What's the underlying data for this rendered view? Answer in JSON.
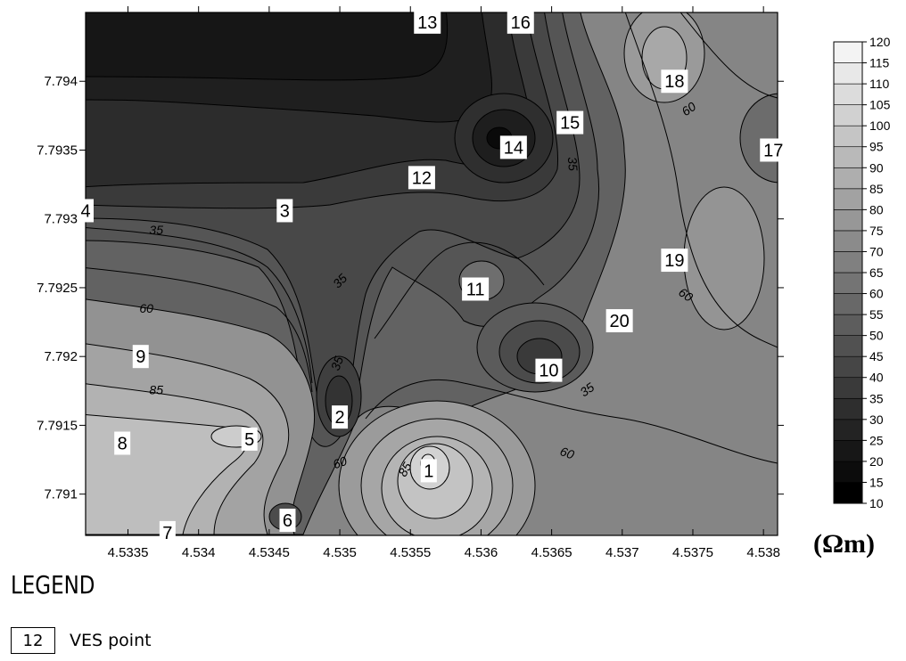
{
  "map": {
    "x_ticks": [
      "4.5335",
      "4.534",
      "4.5345",
      "4.535",
      "4.5355",
      "4.536",
      "4.5365",
      "4.537",
      "4.5375",
      "4.538"
    ],
    "y_ticks": [
      "7.794",
      "7.7935",
      "7.793",
      "7.7925",
      "7.792",
      "7.7915",
      "7.791"
    ],
    "x_range": [
      4.5332,
      4.5381
    ],
    "y_range": [
      7.7907,
      7.7945
    ],
    "ves_points": [
      {
        "label": "1",
        "x": 4.53563,
        "y": 7.79117
      },
      {
        "label": "2",
        "x": 4.535,
        "y": 7.79156
      },
      {
        "label": "3",
        "x": 4.53461,
        "y": 7.79306
      },
      {
        "label": "4",
        "x": 4.5332,
        "y": 7.79306
      },
      {
        "label": "5",
        "x": 4.53436,
        "y": 7.7914
      },
      {
        "label": "6",
        "x": 4.53463,
        "y": 7.79081
      },
      {
        "label": "7",
        "x": 4.53378,
        "y": 7.79072
      },
      {
        "label": "8",
        "x": 4.53346,
        "y": 7.79137
      },
      {
        "label": "9",
        "x": 4.53359,
        "y": 7.792
      },
      {
        "label": "10",
        "x": 4.53648,
        "y": 7.7919
      },
      {
        "label": "11",
        "x": 4.53596,
        "y": 7.79249
      },
      {
        "label": "12",
        "x": 4.53558,
        "y": 7.7933
      },
      {
        "label": "13",
        "x": 4.53562,
        "y": 7.79443
      },
      {
        "label": "14",
        "x": 4.53623,
        "y": 7.79352
      },
      {
        "label": "15",
        "x": 4.53663,
        "y": 7.7937
      },
      {
        "label": "16",
        "x": 4.53628,
        "y": 7.79443
      },
      {
        "label": "17",
        "x": 4.53807,
        "y": 7.7935
      },
      {
        "label": "18",
        "x": 4.53737,
        "y": 7.794
      },
      {
        "label": "19",
        "x": 4.53737,
        "y": 7.7927
      },
      {
        "label": "20",
        "x": 4.53698,
        "y": 7.79226
      }
    ],
    "isoline_labels": [
      {
        "text": "35",
        "x": 4.5337,
        "y": 7.79292,
        "angle": 0
      },
      {
        "text": "35",
        "x": 4.535,
        "y": 7.79255,
        "angle": -45
      },
      {
        "text": "35",
        "x": 4.53498,
        "y": 7.79195,
        "angle": -70
      },
      {
        "text": "35",
        "x": 4.53665,
        "y": 7.7934,
        "angle": 85
      },
      {
        "text": "35",
        "x": 4.53675,
        "y": 7.79176,
        "angle": -35
      },
      {
        "text": "60",
        "x": 4.53363,
        "y": 7.79235,
        "angle": 0
      },
      {
        "text": "60",
        "x": 4.535,
        "y": 7.79123,
        "angle": -20
      },
      {
        "text": "60",
        "x": 4.53661,
        "y": 7.7913,
        "angle": 20
      },
      {
        "text": "60",
        "x": 4.53747,
        "y": 7.7938,
        "angle": -35
      },
      {
        "text": "60",
        "x": 4.53745,
        "y": 7.79245,
        "angle": 35
      },
      {
        "text": "85",
        "x": 4.5337,
        "y": 7.79176,
        "angle": 0
      },
      {
        "text": "85",
        "x": 4.53546,
        "y": 7.79118,
        "angle": -60
      }
    ]
  },
  "colorbar": {
    "levels": [
      10,
      15,
      20,
      25,
      30,
      35,
      40,
      45,
      50,
      55,
      60,
      65,
      70,
      75,
      80,
      85,
      90,
      95,
      100,
      105,
      110,
      115,
      120
    ],
    "labels": [
      "10",
      "15",
      "20",
      "25",
      "30",
      "35",
      "40",
      "45",
      "50",
      "55",
      "60",
      "65",
      "70",
      "75",
      "80",
      "85",
      "90",
      "95",
      "100",
      "105",
      "110",
      "115",
      "120"
    ],
    "unit": "(Ωm)"
  },
  "legend": {
    "title": "LEGEND",
    "sample": "12",
    "label": "VES point"
  }
}
